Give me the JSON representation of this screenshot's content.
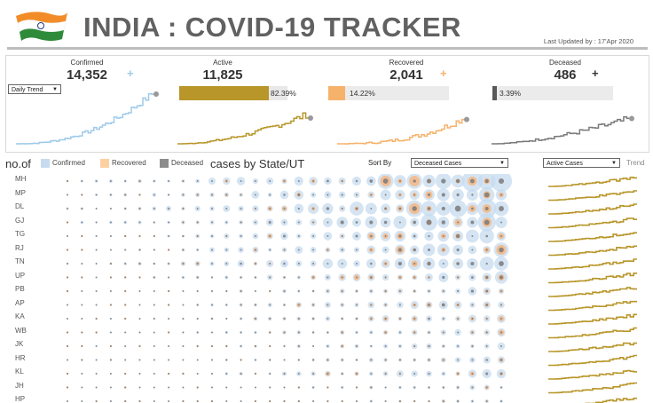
{
  "header": {
    "title": "INDIA : COVID-19 TRACKER",
    "last_updated": "Last Updated by : 17'Apr 2020"
  },
  "kpis": {
    "confirmed": {
      "label": "Confirmed",
      "value": "14,352",
      "plus": "+",
      "color": "#9ecae9"
    },
    "active": {
      "label": "Active",
      "value": "11,825",
      "pct_text": "82.39%",
      "pct": 0.8239,
      "color": "#b8962a"
    },
    "recovered": {
      "label": "Recovered",
      "value": "2,041",
      "plus": "+",
      "pct_text": "14.22%",
      "pct": 0.1422,
      "color": "#f6b26b"
    },
    "deceased": {
      "label": "Deceased",
      "value": "486",
      "plus": "+",
      "pct_text": "3.39%",
      "pct": 0.0339,
      "color": "#595959"
    }
  },
  "controls": {
    "daily_trend": "Daily Trend",
    "sort_by_label": "Sort By",
    "sort_by_value": "Deceased Cases",
    "trend_select": "Active Cases",
    "trend_label": "Trend"
  },
  "legend": {
    "prefix": "no.of",
    "items": [
      {
        "label": "Confirmed",
        "color": "#c6dbef"
      },
      {
        "label": "Recovered",
        "color": "#fdd0a2"
      },
      {
        "label": "Deceased",
        "color": "#8c8c8c"
      }
    ],
    "suffix": "cases by State/UT"
  },
  "states": [
    "MH",
    "MP",
    "DL",
    "GJ",
    "TG",
    "RJ",
    "TN",
    "UP",
    "PB",
    "AP",
    "KA",
    "WB",
    "JK",
    "HR",
    "KL",
    "JH",
    "HP"
  ],
  "colors": {
    "confirmed": "#9ecae9",
    "confirmed_fill": "#c6dbef",
    "recovered": "#fdae6b",
    "deceased": "#7a7a7a",
    "active": "#b8962a",
    "rule": "#bdbdbd"
  }
}
